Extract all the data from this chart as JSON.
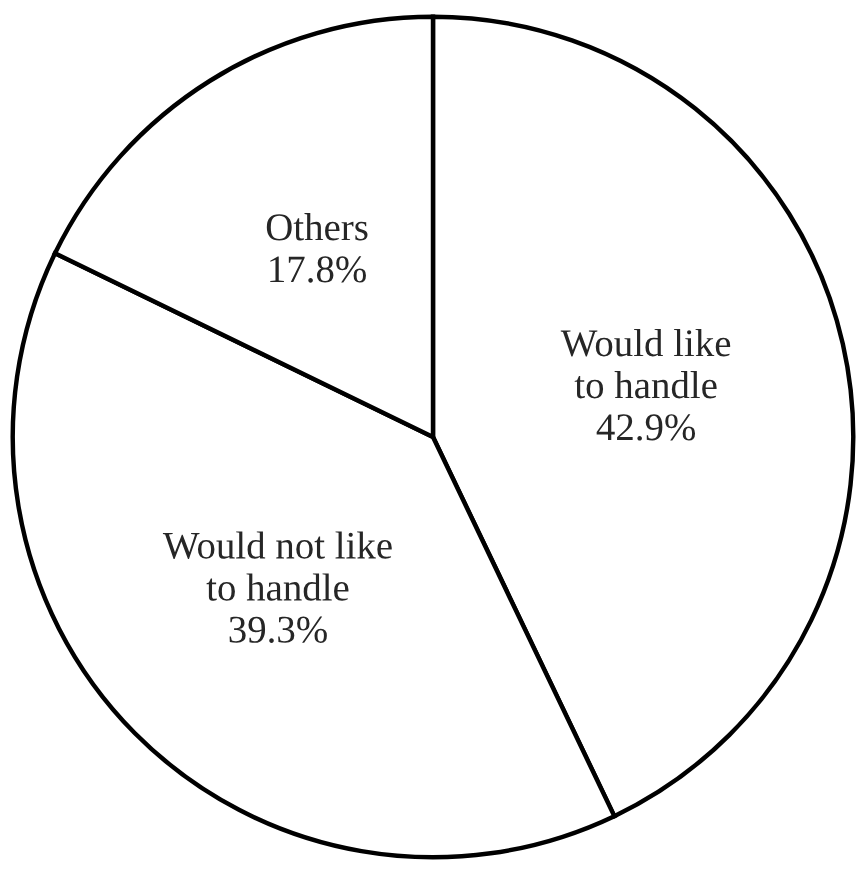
{
  "chart_data": {
    "type": "pie",
    "categories": [
      "Would like\nto handle",
      "Would not like\nto handle",
      "Others"
    ],
    "values": [
      42.9,
      39.3,
      17.8
    ],
    "value_labels": [
      "42.9%",
      "39.3%",
      "17.8%"
    ],
    "colors": [
      "#ffffff",
      "#ffffff",
      "#ffffff"
    ]
  }
}
